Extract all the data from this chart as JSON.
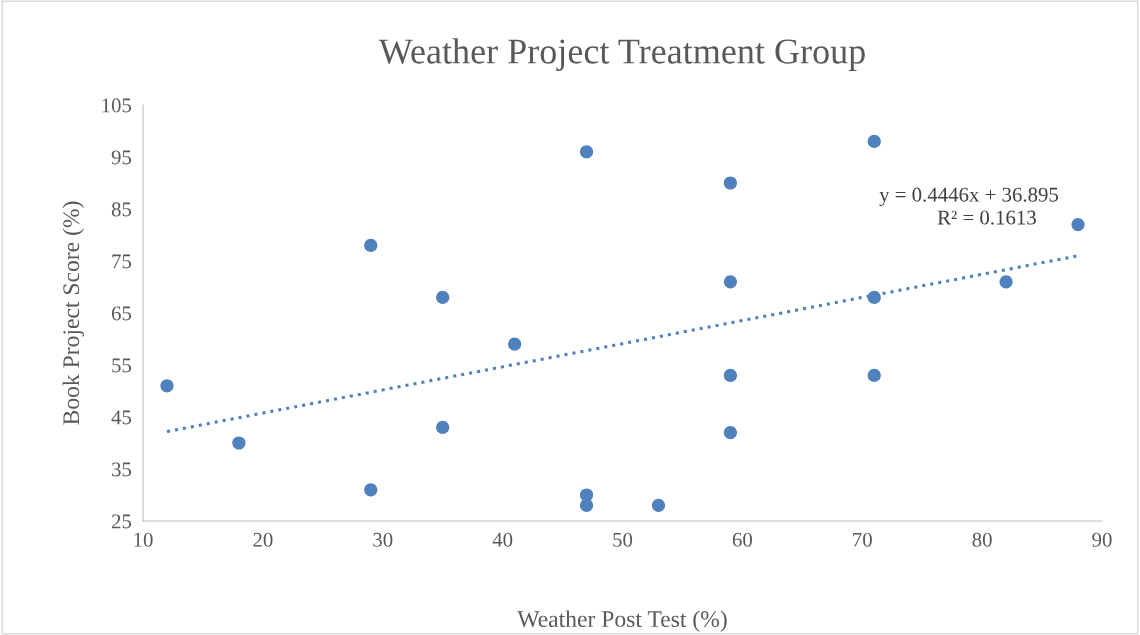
{
  "chart_data": {
    "type": "scatter",
    "title": "Weather Project Treatment Group",
    "xlabel": "Weather Post Test (%)",
    "ylabel": "Book Project Score (%)",
    "xlim": [
      10,
      90
    ],
    "xticks": [
      10,
      20,
      30,
      40,
      50,
      60,
      70,
      80,
      90
    ],
    "ylim": [
      25,
      105
    ],
    "yticks": [
      25,
      35,
      45,
      55,
      65,
      75,
      85,
      95,
      105
    ],
    "grid": false,
    "legend": false,
    "marker": "circle",
    "series": [
      {
        "color": "#4f81bd",
        "x": [
          12,
          18,
          29,
          29,
          35,
          35,
          41,
          47,
          47,
          47,
          53,
          59,
          59,
          59,
          59,
          71,
          71,
          71,
          82,
          88
        ],
        "values": [
          51,
          40,
          78,
          31,
          68,
          43,
          59,
          96,
          30,
          28,
          28,
          90,
          71,
          53,
          42,
          98,
          68,
          53,
          71,
          82
        ]
      },
      {
        "type": "line",
        "color": "#4f81bd",
        "line_style": "dotted",
        "marker": "none",
        "x": [
          12,
          88
        ],
        "values": [
          42.2,
          76.0
        ]
      }
    ],
    "annotations": [
      "y = 0.4446x + 36.895",
      "R² = 0.1613"
    ]
  }
}
